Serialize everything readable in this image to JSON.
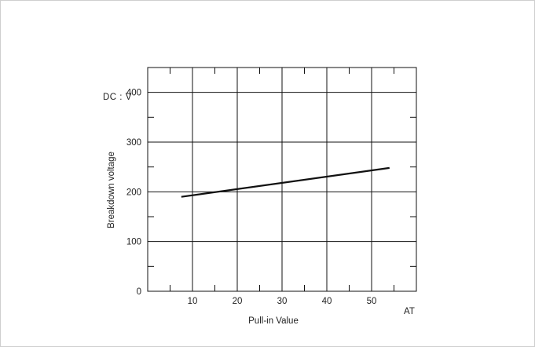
{
  "chart_data": {
    "type": "line",
    "ylabel": "Breakdown voltage",
    "yunit": "DC : V",
    "xlabel": "Pull-in Value",
    "xunit": "AT",
    "xlim": [
      0,
      60
    ],
    "ylim": [
      0,
      450
    ],
    "x_ticks": [
      "10",
      "20",
      "30",
      "40",
      "50"
    ],
    "y_ticks": [
      "0",
      "100",
      "200",
      "300",
      "400"
    ],
    "grid": true,
    "series": [
      {
        "x": [
          7.5,
          54
        ],
        "y": [
          190,
          248
        ]
      }
    ]
  }
}
